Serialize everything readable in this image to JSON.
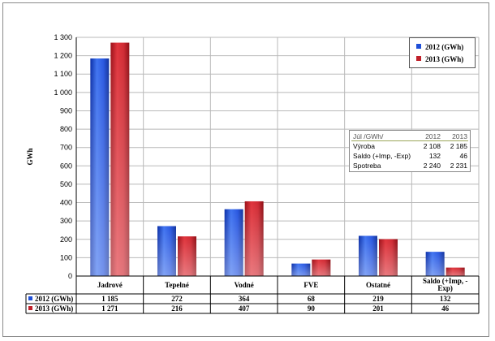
{
  "chart_data": {
    "type": "bar",
    "ylabel": "GWh",
    "ylim": [
      0,
      1300
    ],
    "ytick_step": 100,
    "yticks": [
      "0",
      "100",
      "200",
      "300",
      "400",
      "500",
      "600",
      "700",
      "800",
      "900",
      "1 000",
      "1 100",
      "1 200",
      "1 300"
    ],
    "grid": true,
    "legend_position": "top-right",
    "categories": [
      "Jadrové",
      "Tepelné",
      "Vodné",
      "FVE",
      "Ostatné",
      "Saldo (+Imp, -Exp)"
    ],
    "series": [
      {
        "name": "2012 (GWh)",
        "values": [
          1185,
          272,
          364,
          68,
          219,
          132
        ],
        "labels": [
          "1 185",
          "272",
          "364",
          "68",
          "219",
          "132"
        ],
        "color": "#1f4fd8"
      },
      {
        "name": "2013 (GWh)",
        "values": [
          1271,
          216,
          407,
          90,
          201,
          46
        ],
        "labels": [
          "1 271",
          "216",
          "407",
          "90",
          "201",
          "46"
        ],
        "color": "#c0202a"
      }
    ]
  },
  "info_table": {
    "header": [
      "Júl /GWh/",
      "2012",
      "2013"
    ],
    "rows": [
      [
        "Výroba",
        "2 108",
        "2 185"
      ],
      [
        "Saldo (+Imp, -Exp)",
        "132",
        "46"
      ],
      [
        "Spotreba",
        "2 240",
        "2 231"
      ]
    ]
  }
}
